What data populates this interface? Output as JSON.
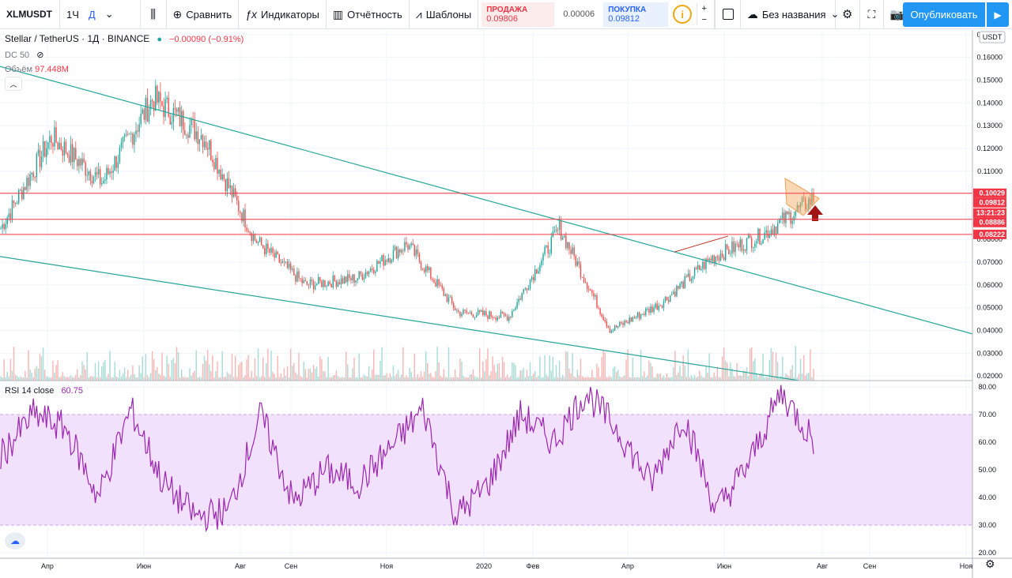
{
  "toolbar": {
    "symbol": "XLMUSDT",
    "intervals": [
      "1Ч",
      "Д"
    ],
    "interval_dropdown_icon": "chevron-down-icon",
    "compare_label": "Сравнить",
    "indicators_label": "Индикаторы",
    "financials_label": "Отчётность",
    "templates_label": "Шаблоны",
    "sell_label": "ПРОДАЖА",
    "sell_price": "0.09806",
    "spread": "0.00006",
    "buy_label": "ПОКУПКА",
    "buy_price": "0.09812",
    "layout_name": "Без названия",
    "publish_label": "Опубликовать",
    "colors": {
      "sell": "#f23645",
      "buy": "#2962ff",
      "publish": "#2196f3",
      "warning": "#f0a60d"
    }
  },
  "legend": {
    "title": "Stellar / TetherUS · 1Д · BINANCE",
    "change": "−0.00090 (−0.91%)",
    "dc_label": "DC 50",
    "volume_label": "Объём",
    "volume_value": "97.448M",
    "rsi_label": "RSI 14 close",
    "rsi_value": "60.75"
  },
  "price_axis": {
    "currency": "USDT",
    "ticks": [
      "0.17000",
      "0.16000",
      "0.15000",
      "0.14000",
      "0.13000",
      "0.12000",
      "0.11000",
      "0.10000",
      "0.09000",
      "0.08000",
      "0.07000",
      "0.06000",
      "0.05000",
      "0.04000",
      "0.03000",
      "0.02000"
    ],
    "badges": [
      {
        "text": "0.10029",
        "color": "#f23645"
      },
      {
        "text": "0.09812",
        "color": "#f23645"
      },
      {
        "text": "13:21:23",
        "color": "#f23645"
      },
      {
        "text": "0.08886",
        "color": "#f23645"
      },
      {
        "text": "0.08222",
        "color": "#f23645"
      }
    ]
  },
  "rsi_axis": {
    "ticks": [
      "80.00",
      "70.00",
      "60.00",
      "50.00",
      "40.00",
      "30.00",
      "20.00"
    ]
  },
  "time_axis": {
    "labels": [
      "Апр",
      "Июн",
      "Авг",
      "Сен",
      "Ноя",
      "2020",
      "Фев",
      "Апр",
      "Июн",
      "Авг",
      "Сен",
      "Ноя"
    ]
  },
  "chart_data": [
    {
      "type": "line",
      "title": "Stellar / TetherUS · 1Д · BINANCE",
      "x": [
        "2019-03",
        "2019-04",
        "2019-05",
        "2019-06",
        "2019-07",
        "2019-08",
        "2019-09",
        "2019-10",
        "2019-11",
        "2019-12",
        "2020-01",
        "2020-02",
        "2020-03",
        "2020-04",
        "2020-05",
        "2020-06",
        "2020-07"
      ],
      "series": [
        {
          "values": [
            0.085,
            0.125,
            0.105,
            0.142,
            0.125,
            0.08,
            0.06,
            0.063,
            0.078,
            0.048,
            0.046,
            0.085,
            0.04,
            0.052,
            0.072,
            0.082,
            0.098
          ]
        }
      ],
      "ylim": [
        0.018,
        0.172
      ],
      "horizontal_levels": [
        0.10029,
        0.08886,
        0.08222
      ],
      "colors": {
        "up": "#26a69a",
        "down": "#ef5350",
        "trendline": "#26a69a",
        "level": "#f23645"
      }
    },
    {
      "type": "line",
      "series": [
        {
          "name": "RSI 14 close",
          "values": [
            55,
            70,
            65,
            40,
            72,
            45,
            33,
            35,
            70,
            38,
            50,
            45,
            58,
            72,
            33,
            45,
            70,
            60,
            78,
            64,
            45,
            70,
            35,
            52,
            78,
            61
          ]
        }
      ],
      "ylim": [
        18,
        82
      ],
      "band": [
        30,
        70
      ],
      "colors": {
        "line": "#9c27b0",
        "band": "#f1e1fd"
      }
    }
  ]
}
